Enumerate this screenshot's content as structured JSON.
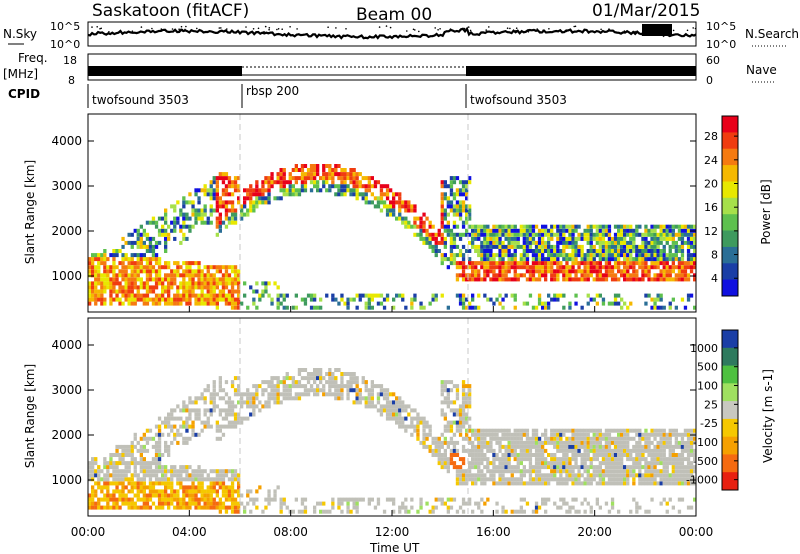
{
  "header": {
    "title_left": "Saskatoon (fitACF)",
    "title_center": "Beam 00",
    "title_right": "01/Mar/2015"
  },
  "nsky": {
    "label": "N.Sky",
    "ticks_left": [
      "10^5",
      "10^0"
    ],
    "ticks_right": [
      "10^5",
      "10^0"
    ],
    "right_label": "N.Search"
  },
  "freq": {
    "label_line1": "Freq.",
    "label_line2": "[MHz]",
    "ticks_left": [
      "18",
      "8"
    ],
    "ticks_right": [
      "60",
      "0"
    ],
    "right_label": "Nave"
  },
  "cpid": {
    "label": "CPID",
    "segments": [
      {
        "label": "twofsound 3503",
        "start_h": 0,
        "end_h": 6
      },
      {
        "label": "rbsp 200",
        "start_h": 6,
        "end_h": 15
      },
      {
        "label": "twofsound 3503",
        "start_h": 15,
        "end_h": 24
      }
    ]
  },
  "chart_data": [
    {
      "type": "heatmap",
      "title": "",
      "xlabel": "Time UT",
      "ylabel": "Slant Range [km]",
      "xlim": [
        0,
        24
      ],
      "ylim": [
        200,
        4600
      ],
      "x_ticks": [
        "00:00",
        "04:00",
        "08:00",
        "12:00",
        "16:00",
        "20:00",
        "00:00"
      ],
      "y_ticks": [
        "1000",
        "2000",
        "3000",
        "4000"
      ],
      "colorbar": {
        "label": "Power [dB]",
        "ticks": [
          "28",
          "24",
          "20",
          "16",
          "12",
          "8",
          "4"
        ],
        "colors": [
          "#e8001a",
          "#f03c10",
          "#f57a10",
          "#f5b800",
          "#e8e800",
          "#a6e04a",
          "#5ec04e",
          "#3e9a5e",
          "#2a6e96",
          "#1a3ea6",
          "#1010e0"
        ]
      }
    },
    {
      "type": "heatmap",
      "title": "",
      "xlabel": "Time UT",
      "ylabel": "Slant Range [km]",
      "xlim": [
        0,
        24
      ],
      "ylim": [
        200,
        4600
      ],
      "x_ticks": [
        "00:00",
        "04:00",
        "08:00",
        "12:00",
        "16:00",
        "20:00",
        "00:00"
      ],
      "y_ticks": [
        "1000",
        "2000",
        "3000",
        "4000"
      ],
      "colorbar": {
        "label": "Velocity [m s-1]",
        "ticks": [
          "1000",
          "500",
          "100",
          "25",
          "-25",
          "-100",
          "-500",
          "-1000"
        ],
        "colors": [
          "#1a3ea6",
          "#2e7a5e",
          "#4ec040",
          "#9fe060",
          "#c8c8c0",
          "#f5c800",
          "#f5a000",
          "#f56a10",
          "#e82010"
        ]
      }
    }
  ],
  "palette": {
    "ground_scatter": "#c0c0b8",
    "gap_line": "#c8c8c8"
  }
}
